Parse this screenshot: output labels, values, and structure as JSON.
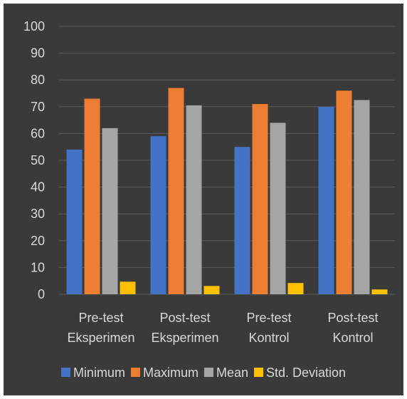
{
  "chart_data": {
    "type": "bar",
    "categories": [
      [
        "Pre-test",
        "Eksperimen"
      ],
      [
        "Post-test",
        "Eksperimen"
      ],
      [
        "Pre-test",
        "Kontrol"
      ],
      [
        "Post-test",
        "Kontrol"
      ]
    ],
    "series": [
      {
        "name": "Minimum",
        "color": "#4472c4",
        "values": [
          54,
          59,
          55,
          70
        ]
      },
      {
        "name": "Maximum",
        "color": "#ed7d31",
        "values": [
          73,
          77,
          71,
          76
        ]
      },
      {
        "name": "Mean",
        "color": "#a5a5a5",
        "values": [
          62,
          70.5,
          64,
          72.5
        ]
      },
      {
        "name": "Std. Deviation",
        "color": "#ffc000",
        "values": [
          4.7,
          3.1,
          4.2,
          1.8
        ]
      }
    ],
    "ylim": [
      0,
      100
    ],
    "yticks": [
      0,
      10,
      20,
      30,
      40,
      50,
      60,
      70,
      80,
      90,
      100
    ],
    "grid": true,
    "legend": "bottom"
  },
  "colors": {
    "background": "#3a3a3a",
    "gridline": "#595959",
    "text": "#d9d9d9"
  }
}
